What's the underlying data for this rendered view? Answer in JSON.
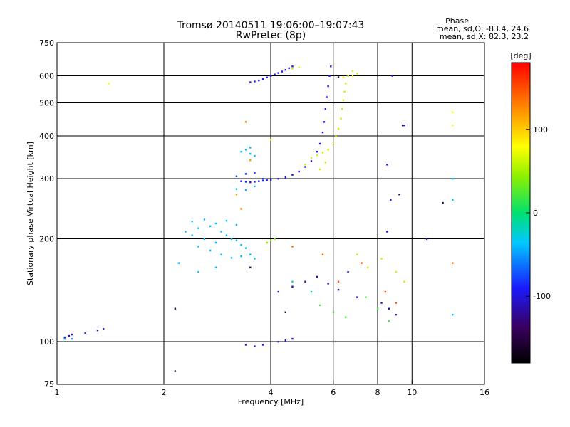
{
  "chart_data": {
    "type": "scatter",
    "title": "Tromsø 20140511 19:06:00–19:07:43",
    "subtitle": "RwPretec (8p)",
    "xlabel": "Frequency [MHz]",
    "ylabel": "Stationary phase Virtual Height [km]",
    "x_scale": "log",
    "y_scale": "log",
    "xlim": [
      1,
      16
    ],
    "ylim": [
      75,
      750
    ],
    "x_ticks": [
      1,
      2,
      4,
      6,
      8,
      10,
      16
    ],
    "y_ticks": [
      75,
      100,
      200,
      300,
      400,
      500,
      600,
      750
    ],
    "grid": true,
    "stats_header": "Phase",
    "stats_o": "mean, sd,O:  -83.4, 24.6",
    "stats_x": "mean, sd,X:  82.3, 23.2",
    "colorbar": {
      "label": "[deg]",
      "range": [
        -180,
        180
      ],
      "ticks": [
        100,
        0,
        -100
      ]
    },
    "series": [
      {
        "points": [
          [
            3.5,
            575,
            -95
          ],
          [
            3.6,
            578,
            -95
          ],
          [
            3.7,
            582,
            -95
          ],
          [
            3.8,
            588,
            -95
          ],
          [
            3.9,
            594,
            -95
          ],
          [
            4.0,
            600,
            -95
          ],
          [
            4.1,
            606,
            -95
          ],
          [
            4.2,
            612,
            -95
          ],
          [
            4.3,
            618,
            -95
          ],
          [
            4.4,
            625,
            -95
          ],
          [
            4.5,
            632,
            -95
          ],
          [
            4.6,
            640,
            -95
          ],
          [
            3.3,
            295,
            -90
          ],
          [
            3.4,
            294,
            -90
          ],
          [
            3.5,
            293,
            -90
          ],
          [
            3.6,
            294,
            -90
          ],
          [
            3.7,
            295,
            -90
          ],
          [
            3.8,
            296,
            -90
          ],
          [
            3.9,
            297,
            -90
          ],
          [
            4.0,
            298,
            -90
          ],
          [
            4.2,
            300,
            -90
          ],
          [
            4.4,
            303,
            -90
          ],
          [
            4.6,
            308,
            -90
          ],
          [
            4.8,
            315,
            -90
          ],
          [
            5.0,
            325,
            -90
          ],
          [
            5.2,
            338,
            -90
          ],
          [
            5.4,
            360,
            -90
          ],
          [
            5.5,
            380,
            -90
          ],
          [
            5.6,
            410,
            -90
          ],
          [
            5.65,
            440,
            -90
          ],
          [
            5.7,
            480,
            -90
          ],
          [
            5.75,
            520,
            -90
          ],
          [
            5.8,
            560,
            -90
          ],
          [
            5.85,
            600,
            -90
          ],
          [
            5.9,
            640,
            -90
          ],
          [
            3.2,
            305,
            -80
          ],
          [
            3.4,
            310,
            -80
          ],
          [
            3.6,
            312,
            -80
          ],
          [
            3.8,
            300,
            -80
          ],
          [
            1.05,
            103,
            -110
          ],
          [
            1.08,
            104,
            -110
          ],
          [
            1.1,
            105,
            -110
          ],
          [
            1.2,
            106,
            -110
          ],
          [
            1.3,
            108,
            -110
          ],
          [
            1.35,
            109,
            -110
          ],
          [
            3.4,
            98,
            -100
          ],
          [
            3.6,
            97,
            -100
          ],
          [
            3.8,
            98,
            -100
          ],
          [
            4.2,
            100,
            -100
          ],
          [
            4.4,
            101,
            -100
          ],
          [
            4.6,
            102,
            -100
          ],
          [
            4.2,
            140,
            -110
          ],
          [
            4.6,
            145,
            -110
          ],
          [
            5.0,
            150,
            -110
          ],
          [
            5.4,
            155,
            -110
          ],
          [
            5.8,
            148,
            -110
          ],
          [
            6.2,
            142,
            -110
          ],
          [
            6.6,
            160,
            -110
          ],
          [
            7.0,
            135,
            -110
          ],
          [
            8.2,
            130,
            -110
          ],
          [
            8.6,
            125,
            -110
          ],
          [
            9.0,
            120,
            -110
          ],
          [
            8.5,
            330,
            -90
          ],
          [
            8.7,
            260,
            -90
          ],
          [
            8.5,
            210,
            -90
          ],
          [
            8.8,
            600,
            -90
          ],
          [
            9.5,
            430,
            -90
          ],
          [
            11.0,
            200,
            -90
          ]
        ]
      },
      {
        "points": [
          [
            2.3,
            210,
            -40
          ],
          [
            2.4,
            205,
            -40
          ],
          [
            2.5,
            215,
            -40
          ],
          [
            2.6,
            200,
            -40
          ],
          [
            2.7,
            218,
            -40
          ],
          [
            2.8,
            195,
            -40
          ],
          [
            2.9,
            210,
            -40
          ],
          [
            3.0,
            205,
            -40
          ],
          [
            3.1,
            200,
            -40
          ],
          [
            3.2,
            198,
            -40
          ],
          [
            3.3,
            192,
            -40
          ],
          [
            3.4,
            188,
            -40
          ],
          [
            3.5,
            180,
            -40
          ],
          [
            3.6,
            175,
            -40
          ],
          [
            2.5,
            190,
            -40
          ],
          [
            2.7,
            185,
            -40
          ],
          [
            2.9,
            180,
            -40
          ],
          [
            3.1,
            176,
            -40
          ],
          [
            3.3,
            178,
            -40
          ],
          [
            2.4,
            225,
            -40
          ],
          [
            2.6,
            228,
            -40
          ],
          [
            2.8,
            222,
            -40
          ],
          [
            3.0,
            226,
            -40
          ],
          [
            3.2,
            220,
            -40
          ],
          [
            3.3,
            360,
            -40
          ],
          [
            3.4,
            365,
            -40
          ],
          [
            3.5,
            355,
            -40
          ],
          [
            3.6,
            350,
            -40
          ],
          [
            3.5,
            370,
            -40
          ],
          [
            3.2,
            280,
            -40
          ],
          [
            3.4,
            278,
            -40
          ],
          [
            3.6,
            285,
            -40
          ],
          [
            2.2,
            170,
            -40
          ],
          [
            2.5,
            160,
            -40
          ],
          [
            2.8,
            165,
            -40
          ],
          [
            1.05,
            102,
            -50
          ],
          [
            1.1,
            102,
            -50
          ],
          [
            13.0,
            300,
            -40
          ],
          [
            13.0,
            260,
            -40
          ],
          [
            13.0,
            120,
            -40
          ]
        ]
      },
      {
        "points": [
          [
            5.0,
            330,
            60
          ],
          [
            5.2,
            345,
            60
          ],
          [
            5.4,
            352,
            60
          ],
          [
            5.6,
            358,
            60
          ],
          [
            5.8,
            365,
            60
          ],
          [
            6.0,
            380,
            60
          ],
          [
            6.1,
            400,
            60
          ],
          [
            6.2,
            420,
            60
          ],
          [
            6.3,
            450,
            60
          ],
          [
            6.35,
            480,
            60
          ],
          [
            6.4,
            510,
            60
          ],
          [
            6.45,
            540,
            60
          ],
          [
            6.5,
            570,
            60
          ],
          [
            6.6,
            600,
            60
          ],
          [
            6.8,
            620,
            60
          ],
          [
            7.0,
            610,
            60
          ],
          [
            4.6,
            630,
            60
          ],
          [
            4.8,
            635,
            60
          ],
          [
            4.0,
            390,
            60
          ],
          [
            5.5,
            320,
            60
          ],
          [
            5.7,
            335,
            60
          ],
          [
            3.9,
            195,
            40
          ],
          [
            4.0,
            198,
            40
          ],
          [
            4.1,
            200,
            40
          ],
          [
            1.4,
            570,
            80
          ],
          [
            6.8,
            600,
            80
          ],
          [
            6.4,
            595,
            80
          ],
          [
            7.0,
            180,
            60
          ],
          [
            7.5,
            165,
            60
          ],
          [
            8.2,
            175,
            60
          ],
          [
            9.0,
            160,
            60
          ],
          [
            9.5,
            150,
            60
          ],
          [
            13.0,
            470,
            80
          ],
          [
            13.0,
            430,
            80
          ]
        ]
      },
      {
        "points": [
          [
            3.4,
            440,
            130
          ],
          [
            3.3,
            245,
            130
          ],
          [
            3.5,
            340,
            120
          ],
          [
            3.2,
            270,
            120
          ],
          [
            6.2,
            150,
            150
          ],
          [
            7.2,
            170,
            150
          ],
          [
            8.4,
            140,
            150
          ],
          [
            9.0,
            130,
            150
          ],
          [
            13.0,
            170,
            140
          ],
          [
            4.6,
            190,
            140
          ],
          [
            5.6,
            180,
            140
          ]
        ]
      },
      {
        "points": [
          [
            5.5,
            128,
            20
          ],
          [
            6.0,
            122,
            20
          ],
          [
            6.5,
            118,
            20
          ],
          [
            7.4,
            135,
            20
          ],
          [
            8.0,
            125,
            20
          ],
          [
            8.6,
            115,
            20
          ],
          [
            4.6,
            150,
            0
          ],
          [
            5.2,
            140,
            0
          ]
        ]
      },
      {
        "points": [
          [
            2.15,
            82,
            -150
          ],
          [
            2.15,
            125,
            -150
          ],
          [
            3.5,
            165,
            -150
          ],
          [
            4.4,
            122,
            -150
          ],
          [
            9.4,
            430,
            -150
          ],
          [
            9.2,
            270,
            -150
          ],
          [
            12.2,
            255,
            -150
          ],
          [
            6.2,
            595,
            -150
          ]
        ]
      }
    ]
  }
}
